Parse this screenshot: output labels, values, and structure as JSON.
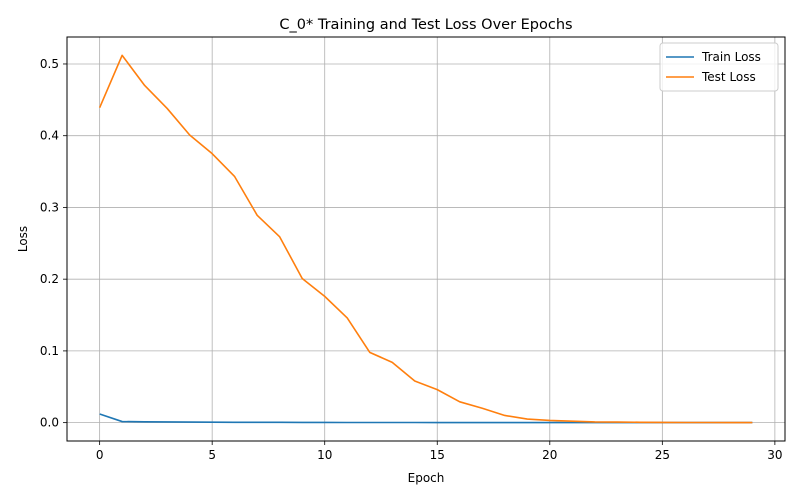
{
  "chart_data": {
    "type": "line",
    "title": "C_0* Training and Test Loss Over Epochs",
    "xlabel": "Epoch",
    "ylabel": "Loss",
    "xlim": [
      -1.45,
      30.45
    ],
    "ylim": [
      -0.0256,
      0.5376
    ],
    "xticks": [
      0,
      5,
      10,
      15,
      20,
      25,
      30
    ],
    "yticks": [
      0.0,
      0.1,
      0.2,
      0.3,
      0.4,
      0.5
    ],
    "ytick_labels": [
      "0.0",
      "0.1",
      "0.2",
      "0.3",
      "0.4",
      "0.5"
    ],
    "grid": true,
    "legend_position": "top-right",
    "x": [
      0,
      1,
      2,
      3,
      4,
      5,
      6,
      7,
      8,
      9,
      10,
      11,
      12,
      13,
      14,
      15,
      16,
      17,
      18,
      19,
      20,
      21,
      22,
      23,
      24,
      25,
      26,
      27,
      28,
      29
    ],
    "series": [
      {
        "name": "Train Loss",
        "color": "#1f77b4",
        "values": [
          0.012,
          0.0015,
          0.0012,
          0.001,
          0.0008,
          0.0006,
          0.0005,
          0.0004,
          0.0004,
          0.0003,
          0.0003,
          0.0002,
          0.0002,
          0.0002,
          0.0002,
          0.0001,
          0.0001,
          0.0001,
          0.0001,
          0.0001,
          0.0001,
          0.0001,
          0.0001,
          0.0001,
          0.0001,
          0.0001,
          0.0001,
          0.0001,
          0.0001,
          0.0001
        ]
      },
      {
        "name": "Test Loss",
        "color": "#ff7f0e",
        "values": [
          0.439,
          0.512,
          0.47,
          0.438,
          0.401,
          0.375,
          0.343,
          0.289,
          0.259,
          0.201,
          0.176,
          0.146,
          0.098,
          0.084,
          0.058,
          0.046,
          0.029,
          0.02,
          0.01,
          0.005,
          0.003,
          0.002,
          0.001,
          0.0008,
          0.0005,
          0.0003,
          0.0002,
          0.0002,
          0.0001,
          0.0001
        ]
      }
    ]
  }
}
